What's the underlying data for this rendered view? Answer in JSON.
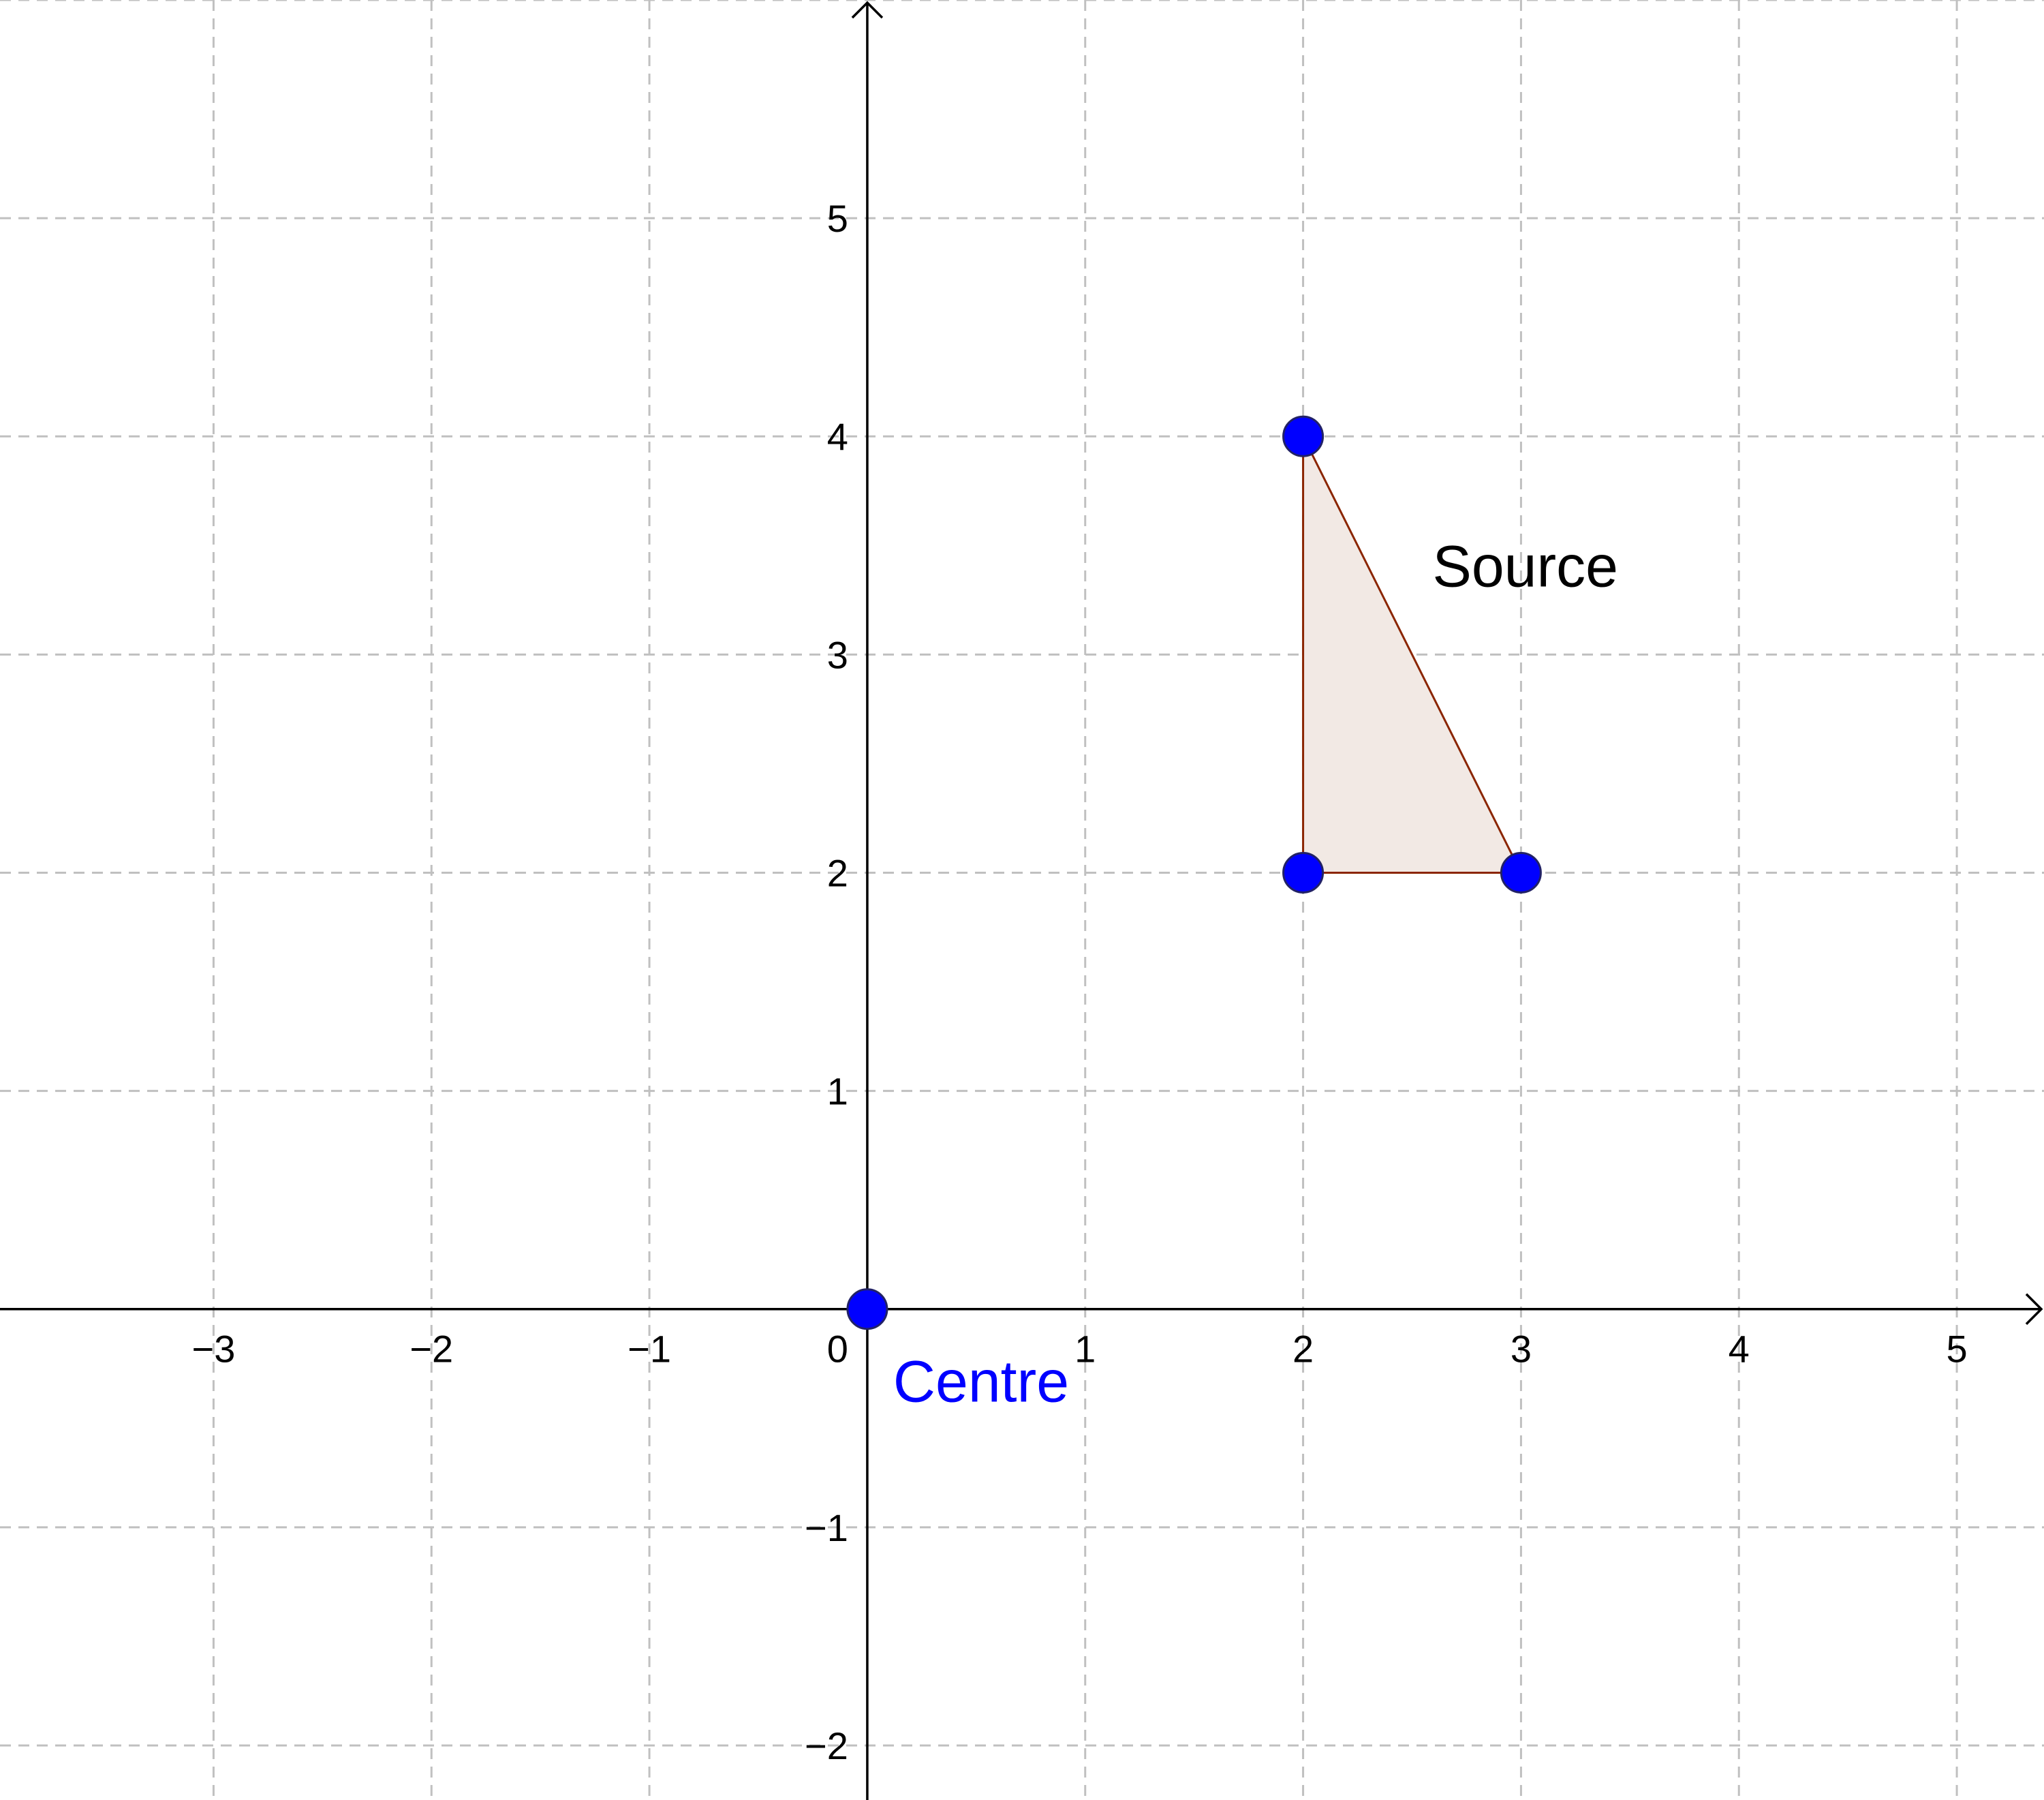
{
  "chart_data": {
    "type": "scatter",
    "xlim": [
      -3.98,
      5.4
    ],
    "ylim": [
      -2.25,
      6.0
    ],
    "grid": true,
    "x_ticks": [
      -3,
      -2,
      -1,
      1,
      2,
      3,
      4,
      5
    ],
    "y_ticks": [
      -2,
      -1,
      1,
      2,
      3,
      4,
      5
    ],
    "x_tick_labels": [
      "−3",
      "−2",
      "−1",
      "1",
      "2",
      "3",
      "4",
      "5"
    ],
    "y_tick_labels": [
      "−2",
      "−1",
      "1",
      "2",
      "3",
      "4",
      "5"
    ],
    "origin_label": "0",
    "polygons": [
      {
        "name": "Source",
        "label": "Source",
        "vertices": [
          [
            2,
            4
          ],
          [
            3,
            2
          ],
          [
            2,
            2
          ]
        ],
        "label_at": [
          2.5,
          3.35
        ],
        "stroke": "#8b2500",
        "fill": "#f2e9e4"
      }
    ],
    "points": [
      {
        "x": 0,
        "y": 0,
        "label": "Centre",
        "color": "#0000ff"
      },
      {
        "x": 2,
        "y": 4,
        "label": "",
        "color": "#0000ff"
      },
      {
        "x": 3,
        "y": 2,
        "label": "",
        "color": "#0000ff"
      },
      {
        "x": 2,
        "y": 2,
        "label": "",
        "color": "#0000ff"
      }
    ]
  }
}
